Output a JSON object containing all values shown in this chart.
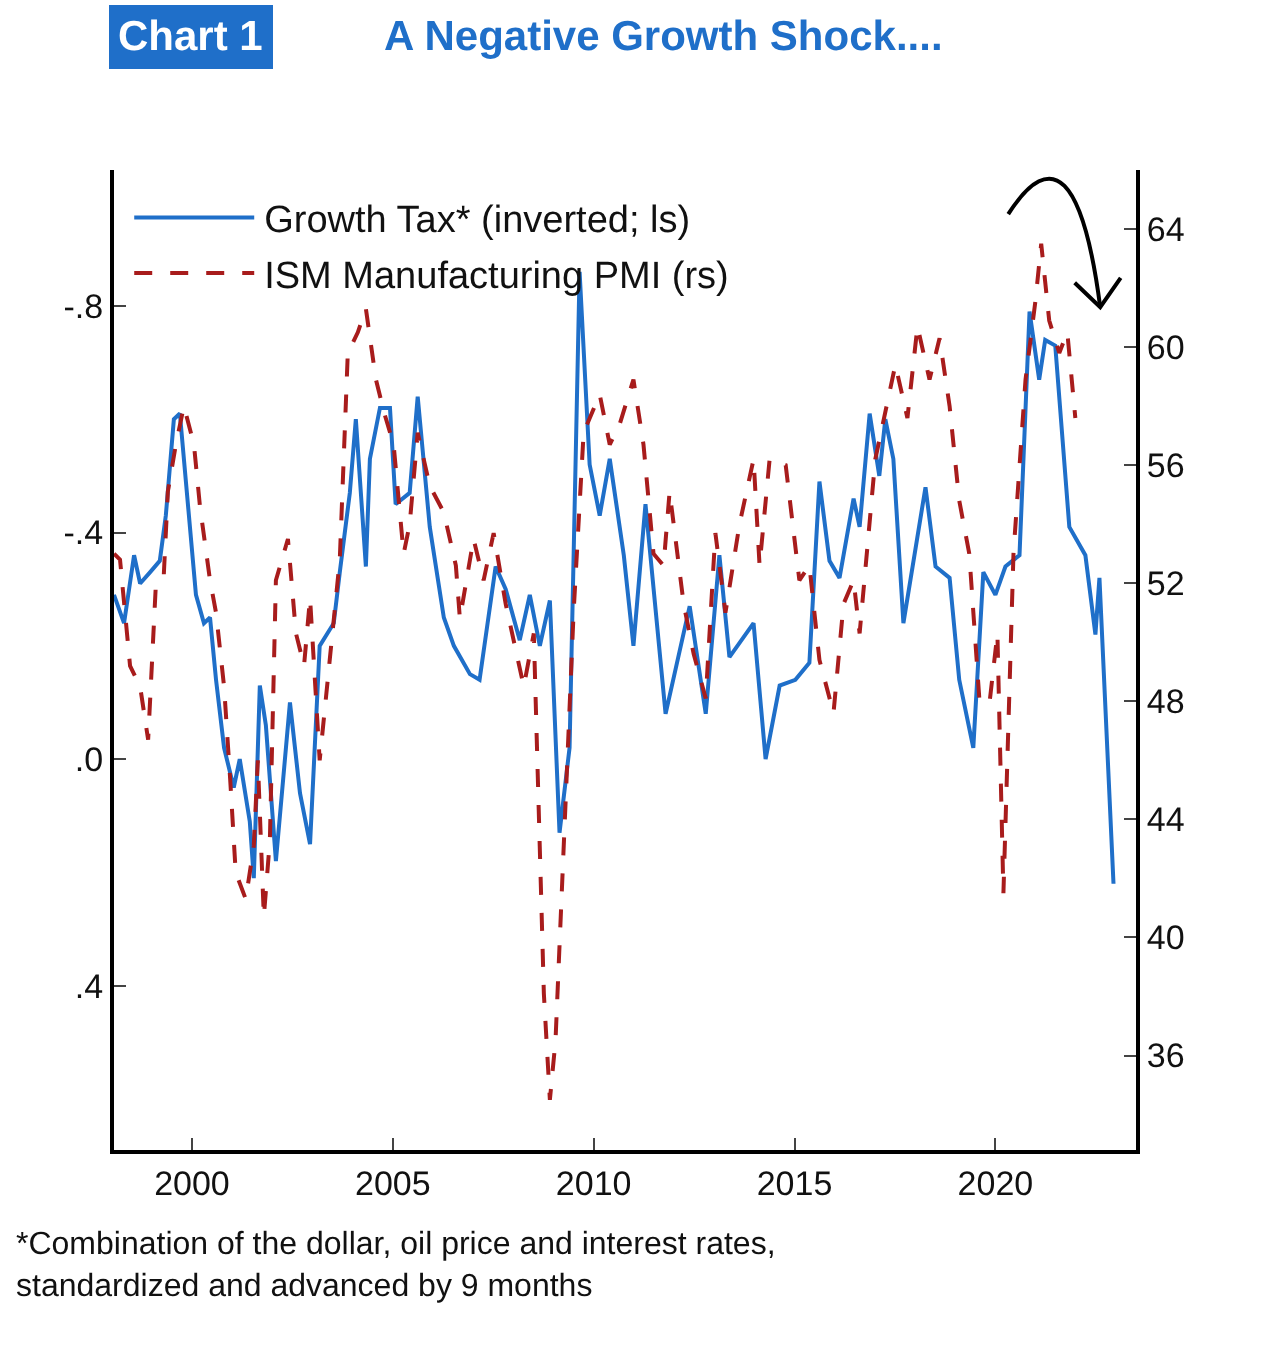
{
  "chart_data": {
    "type": "line",
    "title": "Chart 1",
    "subtitle": "A Negative Growth Shock....",
    "annotations": [
      "*Combination of the dollar, oil price and interest rates,\nstandardized and advanced by 9 months"
    ],
    "xlim": [
      1998.06,
      2023.5
    ],
    "xticks": [
      2000,
      2005,
      2010,
      2015,
      2020
    ],
    "ylim": [
      0.69,
      -1.04
    ],
    "yticks": [
      {
        "value": -0.8,
        "label": "-.8"
      },
      {
        "value": -0.4,
        "label": "-.4"
      },
      {
        "value": 0,
        "label": ".0"
      },
      {
        "value": 0.4,
        "label": ".4"
      }
    ],
    "y2lim": [
      32.8,
      66.0
    ],
    "y2ticks": [
      36,
      40,
      44,
      48,
      52,
      56,
      60,
      64
    ],
    "legend": "top left",
    "marker": "none",
    "series": [
      {
        "name": "Growth Tax* (inverted; ls)",
        "color": "#1f6fc9",
        "line_style": "solid",
        "x": [
          1998.06,
          1998.31,
          1998.56,
          1998.71,
          1998.96,
          1999.2,
          1999.35,
          1999.55,
          1999.7,
          1999.85,
          2000.1,
          2000.3,
          2000.45,
          2000.6,
          2000.8,
          2001.04,
          2001.19,
          2001.44,
          2001.54,
          2001.69,
          2001.84,
          2002.09,
          2002.44,
          2002.69,
          2002.94,
          2003.18,
          2003.53,
          2003.68,
          2003.93,
          2004.08,
          2004.33,
          2004.43,
          2004.68,
          2004.93,
          2005.07,
          2005.42,
          2005.62,
          2005.92,
          2006.27,
          2006.52,
          2006.92,
          2007.16,
          2007.56,
          2007.81,
          2008.16,
          2008.41,
          2008.66,
          2008.91,
          2009.15,
          2009.4,
          2009.65,
          2009.9,
          2010.15,
          2010.4,
          2010.75,
          2010.99,
          2011.29,
          2011.79,
          2012.39,
          2012.79,
          2013.13,
          2013.38,
          2013.98,
          2014.28,
          2014.63,
          2015.02,
          2015.37,
          2015.62,
          2015.87,
          2016.12,
          2016.47,
          2016.62,
          2016.87,
          2017.11,
          2017.26,
          2017.46,
          2017.71,
          2018.26,
          2018.51,
          2018.86,
          2019.1,
          2019.45,
          2019.7,
          2020.0,
          2020.25,
          2020.6,
          2020.85,
          2021.09,
          2021.24,
          2021.49,
          2021.84,
          2022.24,
          2022.49,
          2022.59,
          2022.94
        ],
        "values": [
          -0.29,
          -0.24,
          -0.36,
          -0.31,
          -0.33,
          -0.35,
          -0.43,
          -0.6,
          -0.61,
          -0.49,
          -0.29,
          -0.24,
          -0.25,
          -0.14,
          -0.02,
          0.05,
          0.0,
          0.11,
          0.21,
          -0.13,
          -0.06,
          0.18,
          -0.1,
          0.06,
          0.15,
          -0.2,
          -0.24,
          -0.33,
          -0.47,
          -0.6,
          -0.34,
          -0.53,
          -0.62,
          -0.62,
          -0.45,
          -0.47,
          -0.64,
          -0.41,
          -0.25,
          -0.2,
          -0.15,
          -0.14,
          -0.34,
          -0.3,
          -0.21,
          -0.29,
          -0.2,
          -0.28,
          0.13,
          -0.02,
          -0.86,
          -0.52,
          -0.43,
          -0.53,
          -0.36,
          -0.2,
          -0.45,
          -0.08,
          -0.27,
          -0.08,
          -0.36,
          -0.18,
          -0.24,
          0.0,
          -0.13,
          -0.14,
          -0.17,
          -0.49,
          -0.35,
          -0.32,
          -0.46,
          -0.41,
          -0.61,
          -0.5,
          -0.6,
          -0.53,
          -0.24,
          -0.48,
          -0.34,
          -0.32,
          -0.14,
          -0.02,
          -0.33,
          -0.29,
          -0.34,
          -0.36,
          -0.79,
          -0.67,
          -0.74,
          -0.73,
          -0.41,
          -0.36,
          -0.22,
          -0.32,
          0.22
        ]
      },
      {
        "name": "ISM Manufacturing PMI (rs)",
        "color": "#a81c1c",
        "line_style": "dashed",
        "axis": "y2",
        "x": [
          1998.06,
          1998.21,
          1998.46,
          1998.71,
          1998.91,
          1999.1,
          1999.3,
          1999.4,
          1999.6,
          1999.8,
          2000.05,
          2000.2,
          2000.45,
          2000.6,
          2000.8,
          2000.95,
          2001.09,
          2001.34,
          2001.54,
          2001.64,
          2001.79,
          2001.94,
          2002.09,
          2002.39,
          2002.59,
          2002.79,
          2002.94,
          2003.18,
          2003.43,
          2003.68,
          2003.88,
          2004.13,
          2004.33,
          2004.58,
          2004.78,
          2005.02,
          2005.27,
          2005.42,
          2005.62,
          2005.92,
          2006.27,
          2006.57,
          2006.67,
          2007.01,
          2007.26,
          2007.51,
          2007.81,
          2008.26,
          2008.51,
          2008.76,
          2008.91,
          2009.05,
          2009.5,
          2009.75,
          2010.15,
          2010.4,
          2010.65,
          2010.99,
          2011.24,
          2011.49,
          2011.74,
          2011.89,
          2012.24,
          2012.49,
          2012.79,
          2013.03,
          2013.28,
          2013.63,
          2013.98,
          2014.13,
          2014.38,
          2014.78,
          2015.12,
          2015.37,
          2015.62,
          2015.97,
          2016.22,
          2016.47,
          2016.62,
          2017.01,
          2017.51,
          2017.81,
          2018.06,
          2018.36,
          2018.61,
          2018.86,
          2019.1,
          2019.35,
          2019.6,
          2019.85,
          2020.05,
          2020.2,
          2020.45,
          2020.75,
          2021.0,
          2021.14,
          2021.34,
          2021.59,
          2021.79,
          2021.99
        ],
        "values": [
          53.0,
          52.8,
          49.2,
          48.5,
          46.7,
          51.9,
          52.3,
          55.1,
          56.7,
          58.0,
          56.7,
          54.6,
          52.1,
          51.0,
          48.5,
          45.4,
          42.2,
          41.3,
          43.1,
          46.0,
          40.7,
          43.3,
          52.1,
          53.5,
          50.3,
          49.2,
          51.5,
          46.0,
          49.4,
          52.8,
          59.8,
          60.5,
          61.3,
          58.9,
          57.8,
          56.7,
          53.0,
          54.0,
          57.1,
          55.3,
          54.4,
          52.6,
          50.8,
          53.5,
          52.1,
          53.7,
          51.3,
          48.5,
          50.3,
          38.1,
          34.5,
          36.5,
          51.0,
          57.1,
          58.4,
          56.7,
          57.4,
          58.9,
          56.7,
          53.0,
          52.6,
          55.1,
          51.3,
          49.6,
          48.1,
          53.7,
          51.0,
          54.0,
          56.2,
          52.6,
          56.2,
          56.0,
          52.1,
          52.6,
          49.4,
          47.6,
          51.3,
          52.1,
          50.3,
          56.2,
          59.4,
          57.6,
          60.7,
          58.9,
          60.3,
          58.0,
          54.8,
          53.0,
          48.1,
          47.9,
          50.3,
          41.5,
          53.0,
          58.9,
          61.6,
          63.5,
          60.9,
          59.8,
          60.5,
          57.6
        ]
      }
    ]
  }
}
